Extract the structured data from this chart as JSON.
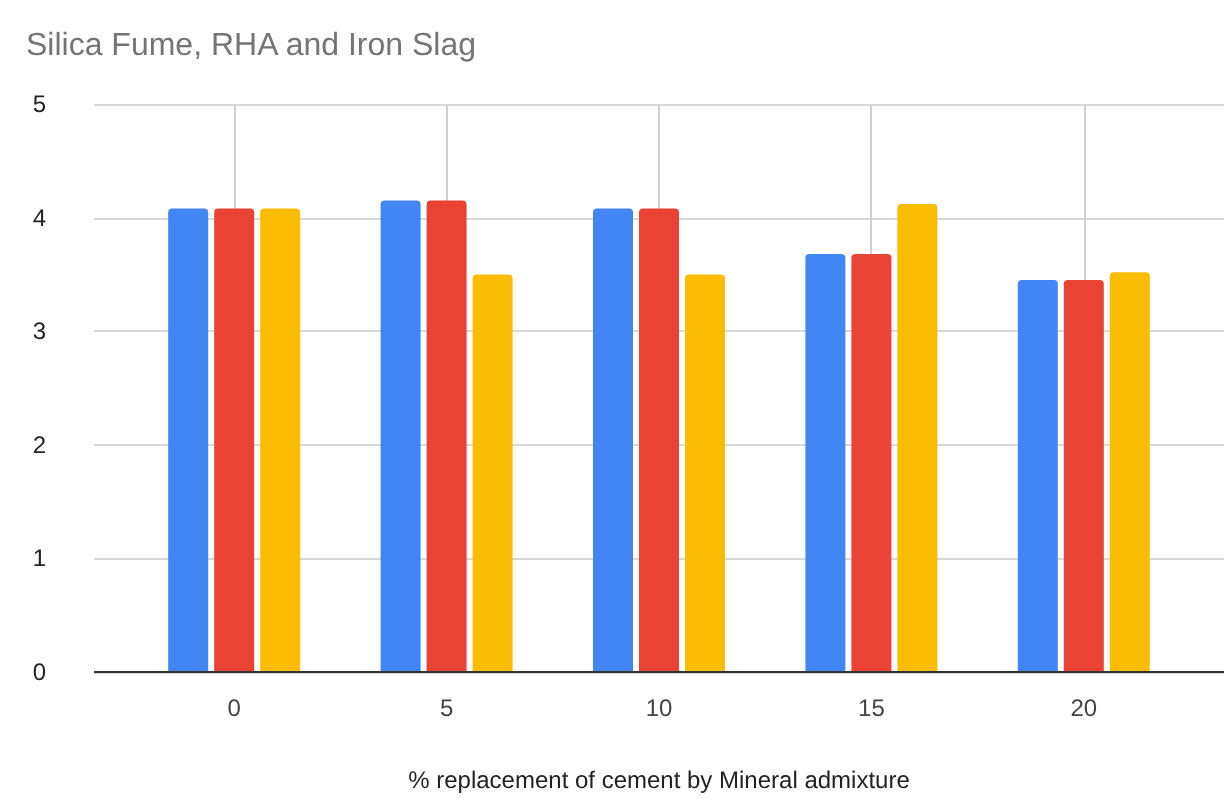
{
  "chart_data": {
    "type": "bar",
    "title": "Silica Fume, RHA and Iron Slag",
    "xlabel": "% replacement of cement by Mineral admixture",
    "x": [
      0,
      5,
      10,
      15,
      20
    ],
    "series": [
      {
        "color": "#4285f4",
        "values": [
          4.08,
          4.15,
          4.08,
          3.68,
          3.45
        ]
      },
      {
        "color": "#ea4335",
        "values": [
          4.08,
          4.15,
          4.08,
          3.68,
          3.45
        ]
      },
      {
        "color": "#fbbc04",
        "values": [
          4.08,
          3.5,
          3.5,
          4.12,
          3.52
        ]
      }
    ],
    "xlim": [
      -3.3,
      23.3
    ],
    "xticks": [
      0,
      5,
      10,
      15,
      20
    ],
    "ylim": [
      0,
      5
    ],
    "yticks": [
      0,
      1,
      2,
      3,
      4,
      5
    ],
    "grid": true
  }
}
